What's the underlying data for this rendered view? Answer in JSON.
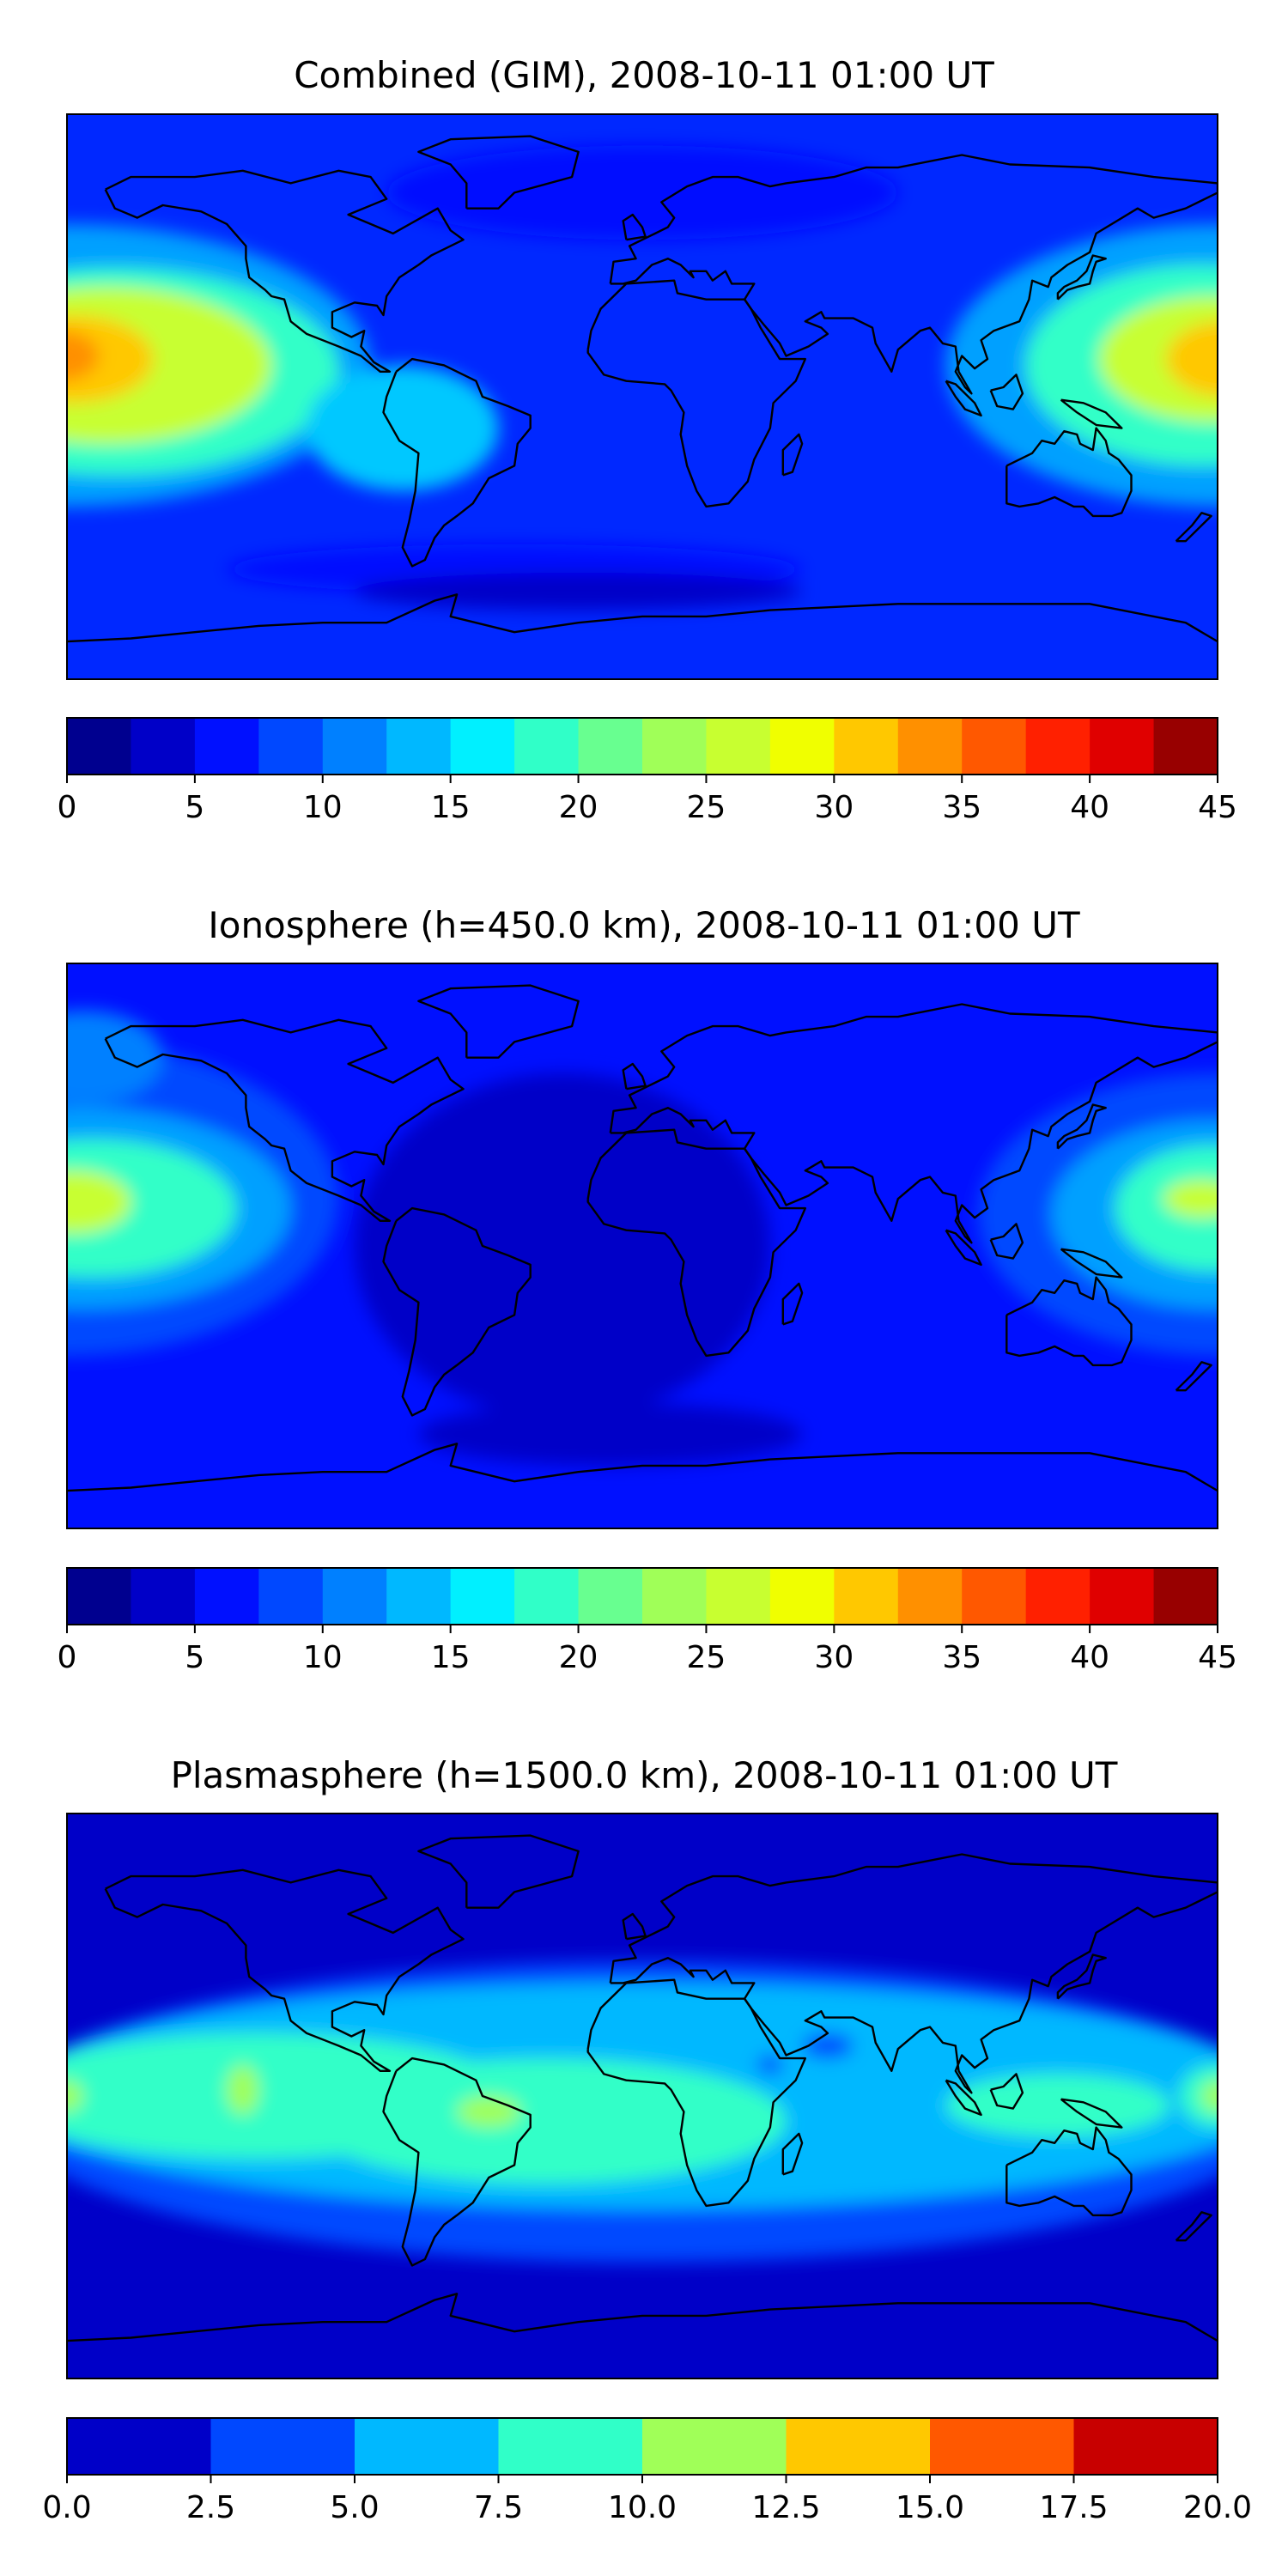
{
  "panels": [
    {
      "title": "Combined (GIM), 2008-10-11 01:00 UT",
      "colorbar": {
        "ticks": [
          "0",
          "5",
          "10",
          "15",
          "20",
          "25",
          "30",
          "35",
          "40",
          "45"
        ],
        "colors": [
          "#00008f",
          "#0000c8",
          "#0010ff",
          "#0048ff",
          "#0080ff",
          "#00b8ff",
          "#00f0ff",
          "#30ffc8",
          "#68ff90",
          "#a0ff58",
          "#c8ff30",
          "#f0ff00",
          "#ffc800",
          "#ff9000",
          "#ff5800",
          "#ff2000",
          "#e00000",
          "#980000"
        ]
      },
      "field": {
        "background": "#0028ff",
        "blobs": [
          {
            "lon": -180,
            "lat": 10,
            "rx": 95,
            "ry": 45,
            "color": "#00a0ff"
          },
          {
            "lon": -165,
            "lat": 8,
            "rx": 70,
            "ry": 33,
            "color": "#30ffc8"
          },
          {
            "lon": -168,
            "lat": 10,
            "rx": 52,
            "ry": 25,
            "color": "#c8ff30"
          },
          {
            "lon": -178,
            "lat": 12,
            "rx": 25,
            "ry": 14,
            "color": "#ffc800"
          },
          {
            "lon": -182,
            "lat": 13,
            "rx": 12,
            "ry": 8,
            "color": "#ff9000"
          },
          {
            "lon": 180,
            "lat": 10,
            "rx": 85,
            "ry": 45,
            "color": "#00a0ff"
          },
          {
            "lon": 175,
            "lat": 10,
            "rx": 55,
            "ry": 32,
            "color": "#30ffc8"
          },
          {
            "lon": 178,
            "lat": 12,
            "rx": 35,
            "ry": 20,
            "color": "#c8ff30"
          },
          {
            "lon": 182,
            "lat": 12,
            "rx": 18,
            "ry": 12,
            "color": "#ffc800"
          },
          {
            "lon": -75,
            "lat": -10,
            "rx": 30,
            "ry": 20,
            "color": "#00c8ff"
          },
          {
            "lon": -40,
            "lat": -55,
            "rx": 90,
            "ry": 8,
            "color": "#0010ff"
          },
          {
            "lon": -20,
            "lat": -62,
            "rx": 70,
            "ry": 6,
            "color": "#0000c8"
          },
          {
            "lon": 0,
            "lat": 65,
            "rx": 80,
            "ry": 15,
            "color": "#0010ff"
          }
        ]
      }
    },
    {
      "title": "Ionosphere  (h=450.0 km), 2008-10-11 01:00 UT",
      "colorbar": {
        "ticks": [
          "0",
          "5",
          "10",
          "15",
          "20",
          "25",
          "30",
          "35",
          "40",
          "45"
        ],
        "colors": [
          "#00008f",
          "#0000c8",
          "#0010ff",
          "#0048ff",
          "#0080ff",
          "#00b8ff",
          "#00f0ff",
          "#30ffc8",
          "#68ff90",
          "#a0ff58",
          "#c8ff30",
          "#f0ff00",
          "#ffc800",
          "#ff9000",
          "#ff5800",
          "#ff2000",
          "#e00000",
          "#980000"
        ]
      },
      "field": {
        "background": "#0010ff",
        "blobs": [
          {
            "lon": -180,
            "lat": 15,
            "rx": 85,
            "ry": 50,
            "color": "#0048ff"
          },
          {
            "lon": -175,
            "lat": 12,
            "rx": 65,
            "ry": 32,
            "color": "#00a0ff"
          },
          {
            "lon": -172,
            "lat": 12,
            "rx": 45,
            "ry": 22,
            "color": "#30ffc8"
          },
          {
            "lon": -178,
            "lat": 14,
            "rx": 18,
            "ry": 10,
            "color": "#c8ff30"
          },
          {
            "lon": -175,
            "lat": 60,
            "rx": 25,
            "ry": 15,
            "color": "#0080ff"
          },
          {
            "lon": 180,
            "lat": 10,
            "rx": 75,
            "ry": 45,
            "color": "#0048ff"
          },
          {
            "lon": 178,
            "lat": 10,
            "rx": 50,
            "ry": 30,
            "color": "#00a0ff"
          },
          {
            "lon": 178,
            "lat": 12,
            "rx": 30,
            "ry": 20,
            "color": "#30ffc8"
          },
          {
            "lon": 175,
            "lat": 15,
            "rx": 12,
            "ry": 6,
            "color": "#c8ff30"
          },
          {
            "lon": -25,
            "lat": 0,
            "rx": 65,
            "ry": 55,
            "color": "#0000c8"
          },
          {
            "lon": -10,
            "lat": -60,
            "rx": 60,
            "ry": 10,
            "color": "#0000c8"
          }
        ]
      }
    },
    {
      "title": "Plasmasphere (h=1500.0 km), 2008-10-11 01:00 UT",
      "colorbar": {
        "ticks": [
          "0.0",
          "2.5",
          "5.0",
          "7.5",
          "10.0",
          "12.5",
          "15.0",
          "17.5",
          "20.0"
        ],
        "colors": [
          "#0000c8",
          "#0048ff",
          "#00b8ff",
          "#30ffc8",
          "#a0ff58",
          "#ffc800",
          "#ff5800",
          "#c80000"
        ]
      },
      "field": {
        "background": "#0000c8",
        "blobs": [
          {
            "lon": 0,
            "lat": -5,
            "rx": 200,
            "ry": 48,
            "color": "#0048ff"
          },
          {
            "lon": 0,
            "lat": 0,
            "rx": 200,
            "ry": 36,
            "color": "#00b8ff"
          },
          {
            "lon": -120,
            "lat": 0,
            "rx": 80,
            "ry": 20,
            "color": "#30ffc8"
          },
          {
            "lon": -30,
            "lat": -8,
            "rx": 75,
            "ry": 20,
            "color": "#30ffc8"
          },
          {
            "lon": 130,
            "lat": -3,
            "rx": 35,
            "ry": 10,
            "color": "#30ffc8"
          },
          {
            "lon": -180,
            "lat": 0,
            "rx": 12,
            "ry": 10,
            "color": "#30ffc8"
          },
          {
            "lon": 180,
            "lat": 0,
            "rx": 12,
            "ry": 10,
            "color": "#30ffc8"
          },
          {
            "lon": -180,
            "lat": 0,
            "rx": 5,
            "ry": 5,
            "color": "#a0ff58"
          },
          {
            "lon": 180,
            "lat": 0,
            "rx": 5,
            "ry": 5,
            "color": "#a0ff58"
          },
          {
            "lon": -125,
            "lat": 2,
            "rx": 5,
            "ry": 8,
            "color": "#a0ff58"
          },
          {
            "lon": -48,
            "lat": -5,
            "rx": 10,
            "ry": 5,
            "color": "#a0ff58"
          },
          {
            "lon": 58,
            "lat": 16,
            "rx": 8,
            "ry": 4,
            "color": "#0048ff"
          },
          {
            "lon": 40,
            "lat": 10,
            "rx": 4,
            "ry": 3,
            "color": "#0048ff"
          }
        ]
      }
    }
  ]
}
